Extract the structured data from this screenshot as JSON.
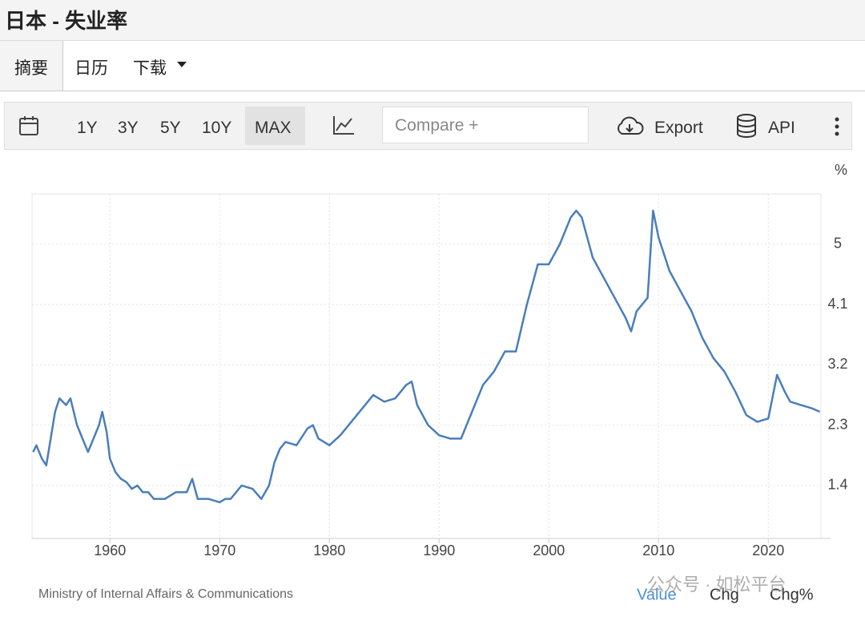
{
  "page": {
    "title": "日本 - 失业率",
    "tabs": [
      "摘要",
      "日历",
      "下载"
    ],
    "ranges": [
      "1Y",
      "3Y",
      "5Y",
      "10Y",
      "MAX"
    ],
    "compare": "Compare +",
    "export": "Export",
    "api": "API",
    "source": "Ministry of Internal Affairs & Communications",
    "footer_tabs": [
      "Chg",
      "Chg%"
    ],
    "watermark": "公众号 · 如松平台"
  },
  "chart_data": {
    "type": "line",
    "ylabel": "%",
    "x": [
      1953.0,
      1953.3,
      1953.8,
      1954.2,
      1954.6,
      1955.0,
      1955.4,
      1956.0,
      1956.4,
      1957.0,
      1957.5,
      1958.0,
      1958.5,
      1959.0,
      1959.3,
      1959.7,
      1960.0,
      1960.5,
      1961.0,
      1961.5,
      1962.0,
      1962.5,
      1963.0,
      1963.5,
      1964.0,
      1965.0,
      1966.0,
      1967.0,
      1967.5,
      1968.0,
      1969.0,
      1970.0,
      1970.5,
      1971.0,
      1972.0,
      1973.0,
      1973.8,
      1974.5,
      1975.0,
      1975.5,
      1976.0,
      1977.0,
      1978.0,
      1978.5,
      1979.0,
      1980.0,
      1981.0,
      1982.0,
      1983.0,
      1984.0,
      1985.0,
      1986.0,
      1987.0,
      1987.5,
      1988.0,
      1989.0,
      1990.0,
      1991.0,
      1992.0,
      1993.0,
      1994.0,
      1995.0,
      1996.0,
      1997.0,
      1998.0,
      1999.0,
      2000.0,
      2001.0,
      2002.0,
      2002.5,
      2003.0,
      2004.0,
      2005.0,
      2006.0,
      2007.0,
      2007.5,
      2008.0,
      2009.0,
      2009.5,
      2010.0,
      2011.0,
      2012.0,
      2013.0,
      2014.0,
      2015.0,
      2016.0,
      2017.0,
      2018.0,
      2019.0,
      2020.0,
      2020.8,
      2021.5,
      2022.0,
      2023.0,
      2024.0,
      2024.7
    ],
    "series": [
      {
        "name": "Value",
        "color": "#4a7ebb",
        "values": [
          1.9,
          2.0,
          1.8,
          1.7,
          2.1,
          2.5,
          2.7,
          2.6,
          2.7,
          2.3,
          2.1,
          1.9,
          2.1,
          2.3,
          2.5,
          2.2,
          1.8,
          1.6,
          1.5,
          1.45,
          1.35,
          1.4,
          1.3,
          1.3,
          1.2,
          1.2,
          1.3,
          1.3,
          1.5,
          1.2,
          1.2,
          1.15,
          1.2,
          1.2,
          1.4,
          1.35,
          1.2,
          1.4,
          1.75,
          1.95,
          2.05,
          2.0,
          2.25,
          2.3,
          2.1,
          2.0,
          2.15,
          2.35,
          2.55,
          2.75,
          2.65,
          2.7,
          2.9,
          2.95,
          2.6,
          2.3,
          2.15,
          2.1,
          2.1,
          2.5,
          2.9,
          3.1,
          3.4,
          3.4,
          4.1,
          4.7,
          4.7,
          5.0,
          5.4,
          5.5,
          5.4,
          4.8,
          4.5,
          4.2,
          3.9,
          3.7,
          4.0,
          4.2,
          5.5,
          5.1,
          4.6,
          4.3,
          4.0,
          3.6,
          3.3,
          3.1,
          2.8,
          2.45,
          2.35,
          2.4,
          3.05,
          2.8,
          2.65,
          2.6,
          2.55,
          2.5
        ]
      }
    ],
    "xlim": [
      1952.9,
      2024.8
    ],
    "xticks": [
      1960,
      1970,
      1980,
      1990,
      2000,
      2010,
      2020
    ],
    "ylim": [
      0.61,
      5.75
    ],
    "yticks": [
      1.4,
      2.3,
      3.2,
      4.1,
      5.0
    ],
    "grid": true
  }
}
